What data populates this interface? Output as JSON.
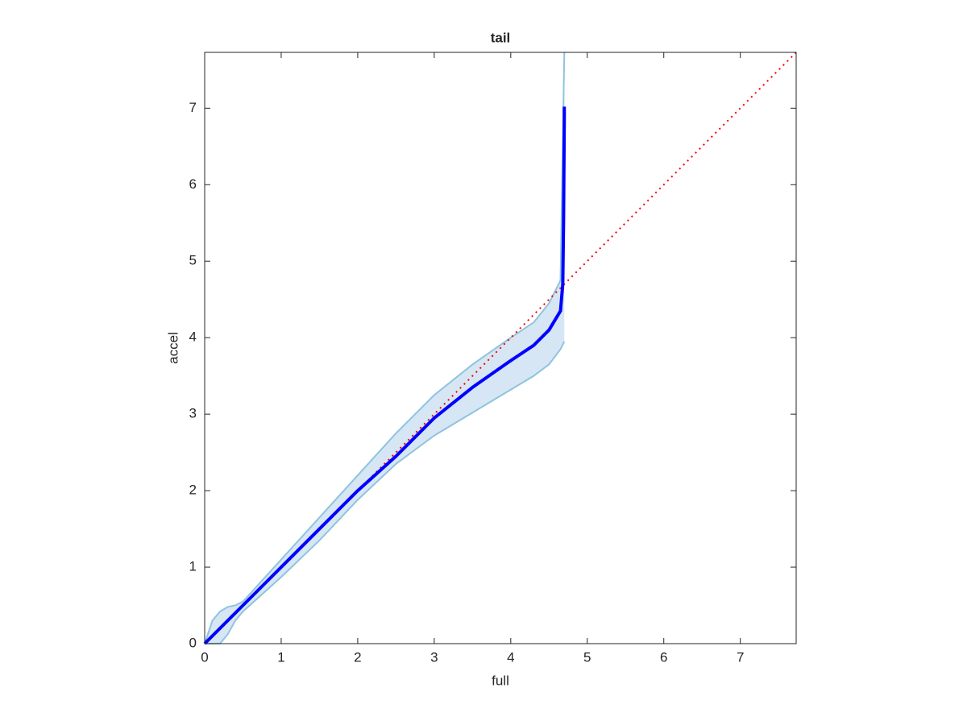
{
  "chart_data": {
    "type": "qq-band",
    "title": "tail",
    "xlabel": "full",
    "ylabel": "accel",
    "xlim": [
      0,
      7.73
    ],
    "ylim": [
      0,
      7.73
    ],
    "xticks": [
      0,
      1,
      2,
      3,
      4,
      5,
      6,
      7
    ],
    "yticks": [
      0,
      1,
      2,
      3,
      4,
      5,
      6,
      7
    ],
    "band": {
      "color": "#d6e6f4",
      "edge_color": "#8fc4dd",
      "x": [
        0,
        0.1,
        0.2,
        0.3,
        0.4,
        0.5,
        1,
        1.5,
        2,
        2.5,
        3,
        3.5,
        4,
        4.3,
        4.5,
        4.65,
        4.7
      ],
      "upper": [
        0,
        0.3,
        0.42,
        0.48,
        0.5,
        0.55,
        1.1,
        1.65,
        2.2,
        2.75,
        3.25,
        3.65,
        4.0,
        4.2,
        4.45,
        4.75,
        7.73
      ],
      "lower": [
        0,
        0,
        0,
        0.12,
        0.3,
        0.42,
        0.87,
        1.35,
        1.88,
        2.35,
        2.72,
        3.02,
        3.32,
        3.5,
        3.65,
        3.85,
        3.95
      ]
    },
    "series": [
      {
        "color": "#ff0000",
        "style": "dotted",
        "x": [
          0,
          7.73
        ],
        "values": [
          0,
          7.73
        ]
      },
      {
        "color": "#0000ff",
        "style": "solid",
        "x": [
          0,
          0.5,
          1,
          1.5,
          2,
          2.5,
          3,
          3.5,
          4,
          4.3,
          4.5,
          4.65,
          4.68,
          4.69,
          4.7,
          4.7
        ],
        "values": [
          0,
          0.5,
          1,
          1.5,
          2,
          2.45,
          2.95,
          3.35,
          3.7,
          3.9,
          4.1,
          4.35,
          4.7,
          5.5,
          6.9,
          7.02
        ]
      }
    ]
  }
}
